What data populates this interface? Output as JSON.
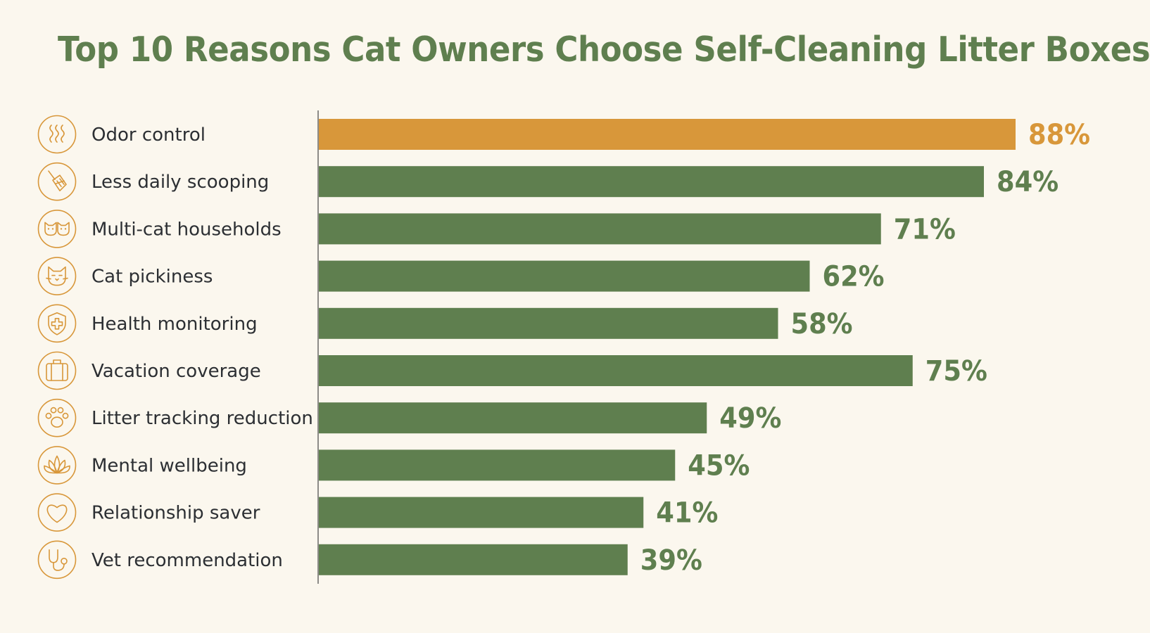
{
  "chart_data": {
    "type": "bar",
    "orientation": "horizontal",
    "title": "Top 10 Reasons Cat Owners Choose Self-Cleaning Litter Boxes",
    "xlabel": "",
    "ylabel": "",
    "xlim": [
      0,
      100
    ],
    "grid": false,
    "categories": [
      "Odor control",
      "Less daily scooping",
      "Multi-cat households",
      "Cat pickiness",
      "Health monitoring",
      "Vacation coverage",
      "Litter tracking reduction",
      "Mental wellbeing",
      "Relationship saver",
      "Vet recommendation"
    ],
    "values": [
      88,
      84,
      71,
      62,
      58,
      75,
      49,
      45,
      41,
      39
    ],
    "value_labels": [
      "88%",
      "84%",
      "71%",
      "62%",
      "58%",
      "75%",
      "49%",
      "45%",
      "41%",
      "39%"
    ],
    "icons": [
      "odor-waves-icon",
      "scoop-icon",
      "two-cats-icon",
      "cat-face-icon",
      "shield-cross-icon",
      "suitcase-icon",
      "paw-icon",
      "lotus-icon",
      "heart-icon",
      "stethoscope-icon"
    ],
    "highlight_index": 0,
    "colors": {
      "bar": "#5f7f4f",
      "highlight": "#d8973a",
      "title": "#5f7f4f",
      "icon": "#d8973a",
      "axis": "#444444",
      "label": "#2c2f33",
      "background": "#fbf7ee"
    }
  }
}
